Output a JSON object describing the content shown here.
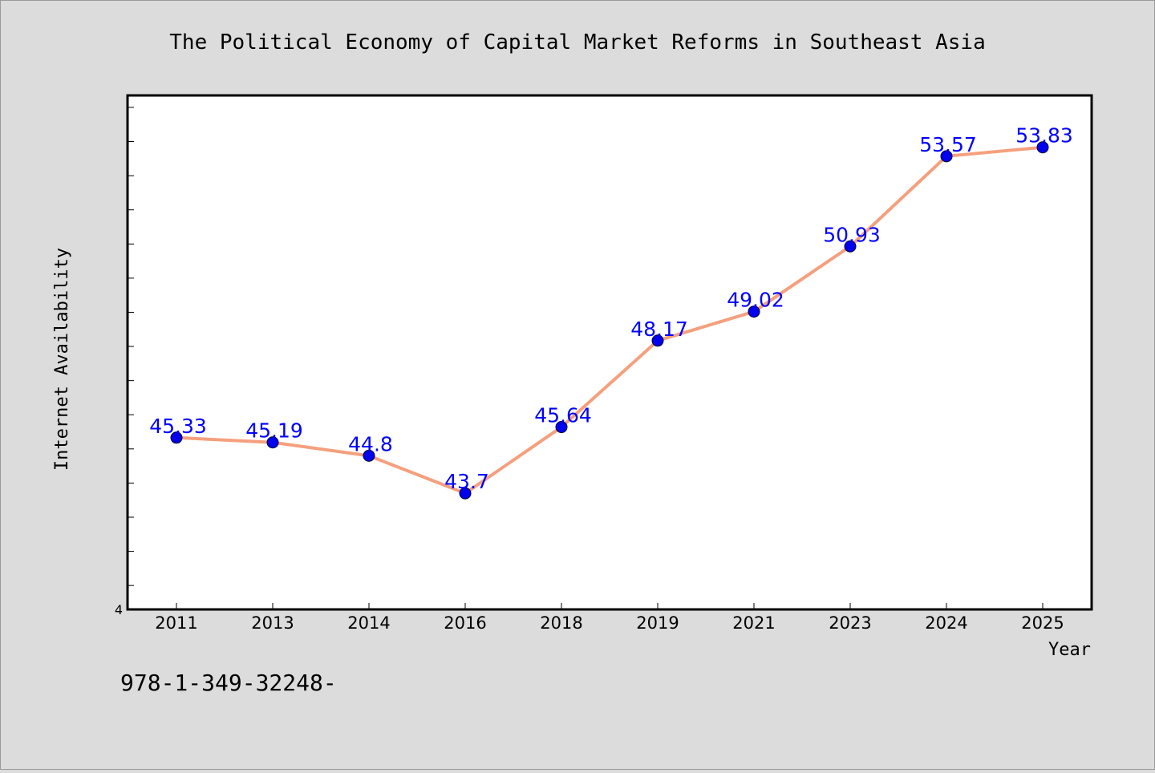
{
  "chart_data": {
    "type": "line",
    "title": "The Political Economy of Capital Market Reforms in Southeast Asia",
    "xlabel": "Year",
    "ylabel": "Internet Availability",
    "categories": [
      "2011",
      "2013",
      "2014",
      "2016",
      "2018",
      "2019",
      "2021",
      "2023",
      "2024",
      "2025"
    ],
    "series": [
      {
        "values": [
          45.33,
          45.19,
          44.8,
          43.7,
          45.64,
          48.17,
          49.02,
          50.93,
          53.57,
          53.83
        ],
        "data_labels": [
          "45.33",
          "45.19",
          "44.8",
          "43.7",
          "45.64",
          "48.17",
          "49.02",
          "50.93",
          "53.57",
          "53.83"
        ]
      }
    ],
    "ylim": [
      40.3,
      55.35
    ],
    "y_tick_labels": [
      "4"
    ],
    "grid": false,
    "legend": "none",
    "colors": {
      "line": "#f4a07e",
      "marker": "#0000ee",
      "data_label": "#0000ff",
      "plot_bg": "#ffffff",
      "page_bg": "#dcdcdc"
    }
  },
  "footer": {
    "text": "978-1-349-32248-"
  }
}
